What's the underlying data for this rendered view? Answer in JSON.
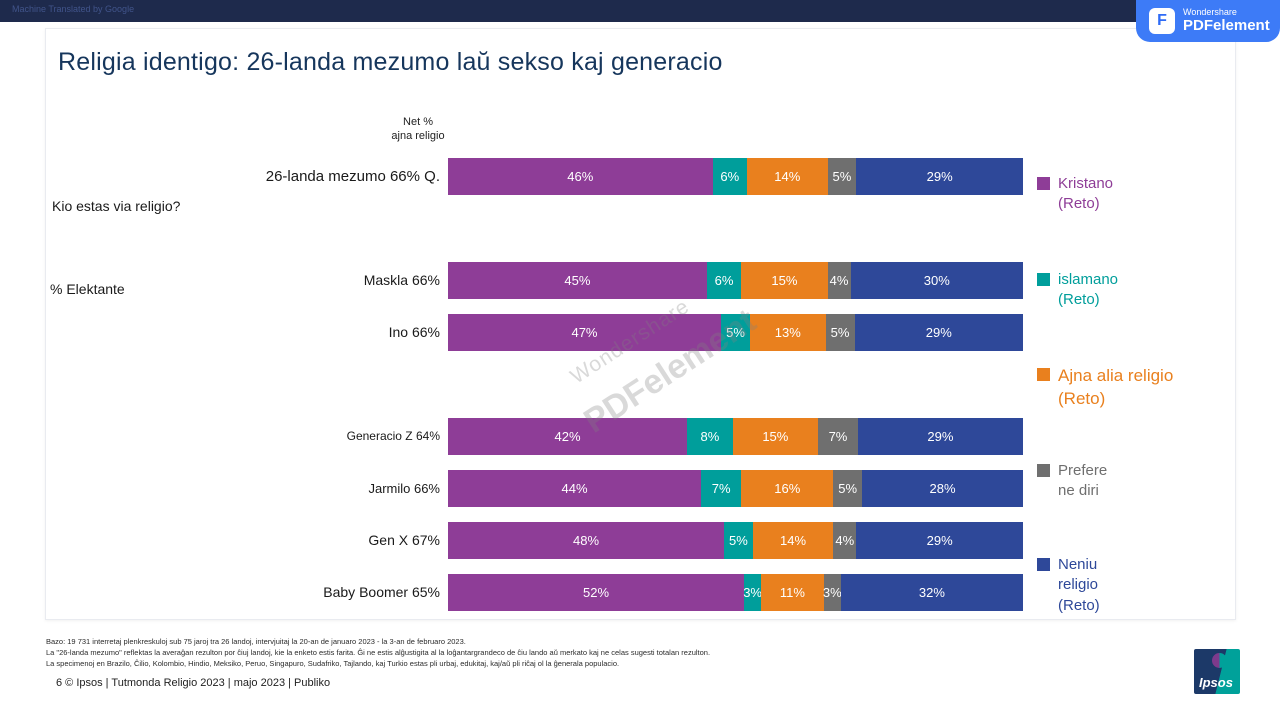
{
  "page": {
    "machine_translated_label": "Machine Translated by Google"
  },
  "pdf_badge": {
    "brand": "Wondershare",
    "product": "PDFelement"
  },
  "watermark": {
    "line1": "Wondershare",
    "line2": "PDFelement"
  },
  "slide": {
    "title": "Religia identigo: 26-landa mezumo laŭ sekso kaj generacio",
    "question": "Kio estas via religio?",
    "percent_selecting": "% Elektante",
    "net_header_line1": "Net %",
    "net_header_line2": "ajna religio"
  },
  "chart_data": {
    "type": "bar",
    "stacked": true,
    "orientation": "horizontal",
    "unit": "%",
    "value_suffix": "%",
    "xlim": [
      0,
      100
    ],
    "grid": false,
    "legend_position": "right",
    "categories": [
      "26-landa mezumo 66% Q.",
      "Maskla 66%",
      "Ino 66%",
      "Generacio Z 64%",
      "Jarmilo 66%",
      "Gen X 67%",
      "Baby Boomer 65%"
    ],
    "series": [
      {
        "name": "Kristano (Reto)",
        "color": "#8E3D97",
        "values": [
          46,
          45,
          47,
          42,
          44,
          48,
          52
        ]
      },
      {
        "name": "islamano (Reto)",
        "color": "#009E9B",
        "values": [
          6,
          6,
          5,
          8,
          7,
          5,
          3
        ]
      },
      {
        "name": "Ajna alia religio (Reto)",
        "color": "#E9801E",
        "values": [
          14,
          15,
          13,
          15,
          16,
          14,
          11
        ]
      },
      {
        "name": "Prefere ne diri",
        "color": "#6F6F6F",
        "values": [
          5,
          4,
          5,
          7,
          5,
          4,
          3
        ]
      },
      {
        "name": "Neniu religio (Reto)",
        "color": "#2E4899",
        "values": [
          29,
          30,
          29,
          29,
          28,
          29,
          32
        ]
      }
    ]
  },
  "footnotes": [
    "Bazo: 19 731 interretaj plenkreskuloj sub 75 jaroj tra 26 landoj, intervjuitaj la 20-an de januaro 2023 - la 3-an de februaro 2023.",
    "La \"26-landa mezumo\" reflektas la averaĝan rezulton por ĉiuj landoj, kie la enketo estis farita. Ĝi ne estis alĝustigita al la loĝantargrandeco de ĉiu lando aŭ merkato kaj ne celas sugesti totalan rezulton.",
    "La specimenoj en Brazilo, Ĉilio, Kolombio, Hindio, Meksiko, Peruo, Singapuro, Sudafriko, Tajlando, kaj Turkio estas pli urbaj, edukitaj, kaj/aŭ pli riĉaj ol la ĝenerala populacio."
  ],
  "footer": "6 © Ipsos | Tutmonda Religio 2023 | majo 2023 | Publiko",
  "logo": {
    "text": "Ipsos"
  },
  "colors": {
    "top_bar": "#1E2A4C",
    "badge_blue": "#3D7BF7",
    "title_navy": "#16365C",
    "logo_navy": "#1C3968",
    "logo_teal": "#00A19A"
  }
}
